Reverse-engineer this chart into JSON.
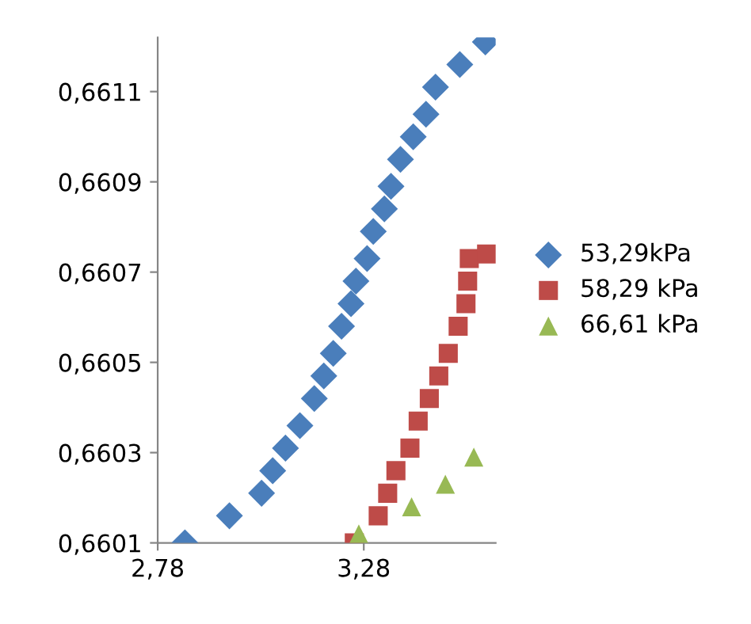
{
  "chart_data": {
    "type": "scatter",
    "xlim": [
      2.78,
      3.6
    ],
    "ylim": [
      0.6601,
      0.66122
    ],
    "xticks": [
      {
        "value": 2.78,
        "label": "2,78"
      },
      {
        "value": 3.28,
        "label": "3,28"
      }
    ],
    "yticks": [
      {
        "value": 0.6601,
        "label": "0,6601"
      },
      {
        "value": 0.6603,
        "label": "0,6603"
      },
      {
        "value": 0.6605,
        "label": "0,6605"
      },
      {
        "value": 0.6607,
        "label": "0,6607"
      },
      {
        "value": 0.6609,
        "label": "0,6609"
      },
      {
        "value": 0.6611,
        "label": "0,6611"
      }
    ],
    "grid": false,
    "legend": "right",
    "series": [
      {
        "name": "53,29kPa",
        "color": "#4a7ebb",
        "marker": "diamond",
        "x": [
          2.846,
          2.954,
          3.032,
          3.059,
          3.09,
          3.125,
          3.16,
          3.183,
          3.206,
          3.226,
          3.249,
          3.261,
          3.288,
          3.303,
          3.33,
          3.346,
          3.369,
          3.4,
          3.431,
          3.454,
          3.513,
          3.575
        ],
        "values": [
          0.6601,
          0.66016,
          0.66021,
          0.66026,
          0.66031,
          0.66036,
          0.66042,
          0.66047,
          0.66052,
          0.66058,
          0.66063,
          0.66068,
          0.66073,
          0.66079,
          0.66084,
          0.66089,
          0.66095,
          0.661,
          0.66105,
          0.66111,
          0.66116,
          0.66121
        ]
      },
      {
        "name": "58,29 kPa",
        "color": "#be4b48",
        "marker": "square",
        "x": [
          3.257,
          3.315,
          3.338,
          3.358,
          3.392,
          3.412,
          3.439,
          3.462,
          3.485,
          3.509,
          3.528,
          3.532,
          3.536,
          3.578
        ],
        "values": [
          0.6601,
          0.66016,
          0.66021,
          0.66026,
          0.66031,
          0.66037,
          0.66042,
          0.66047,
          0.66052,
          0.66058,
          0.66063,
          0.66068,
          0.66073,
          0.66074
        ]
      },
      {
        "name": "66,61 kPa",
        "color": "#98b954",
        "marker": "triangle",
        "x": [
          3.268,
          3.396,
          3.478,
          3.547
        ],
        "values": [
          0.66012,
          0.66018,
          0.66023,
          0.66029
        ]
      }
    ]
  }
}
